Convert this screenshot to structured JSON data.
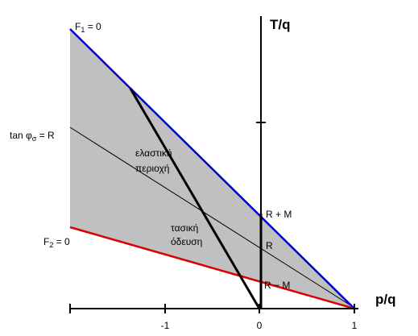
{
  "axes": {
    "y_label": "T/q",
    "x_label": "p/q",
    "x_tick_labels": [
      "-1",
      "0",
      "1"
    ]
  },
  "curves": {
    "f1": {
      "name": "F",
      "sub": "1",
      "rest": " = 0"
    },
    "f2": {
      "name": "F",
      "sub": "2",
      "rest": " = 0"
    },
    "friction": {
      "name": "tan φ",
      "sub": "σ",
      "rest": " = R"
    }
  },
  "regions": {
    "elastic": [
      "ελαστική",
      "περιοχή"
    ],
    "path": [
      "τασική",
      "όδευση"
    ]
  },
  "points": {
    "upper": "R + M",
    "middle": "R",
    "lower": "R − M"
  }
}
